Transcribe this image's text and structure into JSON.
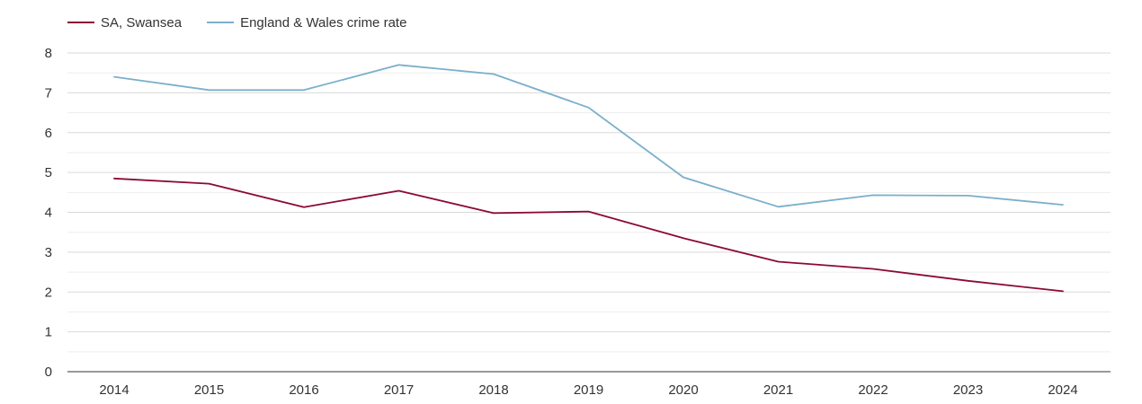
{
  "chart_data": {
    "type": "line",
    "title": "",
    "xlabel": "",
    "ylabel": "",
    "categories": [
      "2014",
      "2015",
      "2016",
      "2017",
      "2018",
      "2019",
      "2020",
      "2021",
      "2022",
      "2023",
      "2024"
    ],
    "ylim": [
      0,
      8
    ],
    "yticks": [
      0,
      1,
      2,
      3,
      4,
      5,
      6,
      7,
      8
    ],
    "grid": true,
    "legend_position": "top-left",
    "series": [
      {
        "name": "SA, Swansea",
        "color": "#8b0a32",
        "values": [
          4.85,
          4.72,
          4.13,
          4.54,
          3.98,
          4.02,
          3.35,
          2.76,
          2.58,
          2.28,
          2.02
        ]
      },
      {
        "name": "England & Wales crime rate",
        "color": "#7bafcc",
        "values": [
          7.4,
          7.07,
          7.07,
          7.7,
          7.47,
          6.63,
          4.88,
          4.14,
          4.43,
          4.42,
          4.19
        ]
      }
    ]
  }
}
